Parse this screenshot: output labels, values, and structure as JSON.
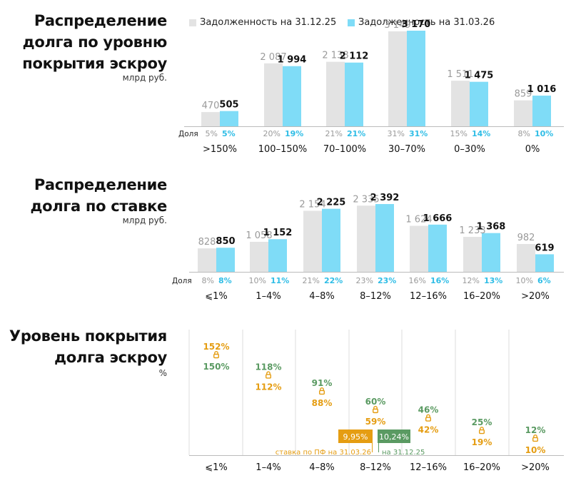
{
  "colors": {
    "gray_bar": "#e3e3e3",
    "cyan_bar": "#7fdcf7",
    "gray_text": "#9a9a9a",
    "cyan_text": "#2fbde6",
    "orange": "#e59d12",
    "green": "#5a9a62",
    "grid": "#dddddd",
    "axis": "#bbbbbb"
  },
  "legend": {
    "a": "Задолженность на 31.12.25",
    "b": "Задолженность на 31.03.26"
  },
  "panel1": {
    "title_l1": "Распределение",
    "title_l2": "долга по уровню",
    "title_l3": "покрытия эскроу",
    "unit": "млрд руб."
  },
  "panel2": {
    "title_l1": "Распределение",
    "title_l2": "долга по ставке",
    "unit": "млрд руб."
  },
  "panel3": {
    "title_l1": "Уровень покрытия",
    "title_l2": "долга эскроу",
    "unit": "%"
  },
  "chart_data": [
    {
      "type": "bar",
      "categories": [
        ">150%",
        "100–150%",
        "70–100%",
        "30–70%",
        "0–30%",
        "0%"
      ],
      "series": [
        {
          "name": "Задолженность на 31.12.25",
          "values": [
            470,
            2087,
            2138,
            3149,
            1511,
            859
          ],
          "labels": [
            "470",
            "2 087",
            "2 138",
            "3 149",
            "1 511",
            "859"
          ],
          "shares": [
            "5%",
            "20%",
            "21%",
            "31%",
            "15%",
            "8%"
          ]
        },
        {
          "name": "Задолженность на 31.03.26",
          "values": [
            505,
            1994,
            2112,
            3170,
            1475,
            1016
          ],
          "labels": [
            "505",
            "1 994",
            "2 112",
            "3 170",
            "1 475",
            "1 016"
          ],
          "shares": [
            "5%",
            "19%",
            "21%",
            "31%",
            "14%",
            "10%"
          ]
        }
      ],
      "share_label": "Доля",
      "ylim": [
        0,
        3170
      ]
    },
    {
      "type": "bar",
      "categories": [
        "⩽1%",
        "1–4%",
        "4–8%",
        "8–12%",
        "12–16%",
        "16–20%",
        ">20%"
      ],
      "series": [
        {
          "name": "Задолженность на 31.12.25",
          "values": [
            828,
            1058,
            2154,
            2335,
            1624,
            1233,
            982
          ],
          "labels": [
            "828",
            "1 058",
            "2 154",
            "2 335",
            "1 624",
            "1 233",
            "982"
          ],
          "shares": [
            "8%",
            "10%",
            "21%",
            "23%",
            "16%",
            "12%",
            "10%"
          ]
        },
        {
          "name": "Задолженность на 31.03.26",
          "values": [
            850,
            1152,
            2225,
            2392,
            1666,
            1368,
            619
          ],
          "labels": [
            "850",
            "1 152",
            "2 225",
            "2 392",
            "1 666",
            "1 368",
            "619"
          ],
          "shares": [
            "8%",
            "11%",
            "22%",
            "23%",
            "16%",
            "13%",
            "6%"
          ]
        }
      ],
      "share_label": "Доля",
      "ylim": [
        0,
        2392
      ]
    },
    {
      "type": "scatter",
      "categories": [
        "⩽1%",
        "1–4%",
        "4–8%",
        "8–12%",
        "12–16%",
        "16–20%",
        ">20%"
      ],
      "series": [
        {
          "name": "31.12.25",
          "values": [
            150,
            118,
            91,
            60,
            46,
            25,
            12
          ],
          "labels": [
            "150%",
            "118%",
            "91%",
            "60%",
            "46%",
            "25%",
            "12%"
          ]
        },
        {
          "name": "31.03.26",
          "values": [
            152,
            112,
            88,
            59,
            42,
            19,
            10
          ],
          "labels": [
            "152%",
            "112%",
            "88%",
            "59%",
            "42%",
            "19%",
            "10%"
          ]
        }
      ],
      "annotations": {
        "rate_mar_value": "9,95%",
        "rate_mar_text": "ставка по ПФ на 31.03.26",
        "rate_dec_value": "10,24%",
        "rate_dec_text": "на 31.12.25"
      },
      "ylim": [
        0,
        152
      ]
    }
  ]
}
